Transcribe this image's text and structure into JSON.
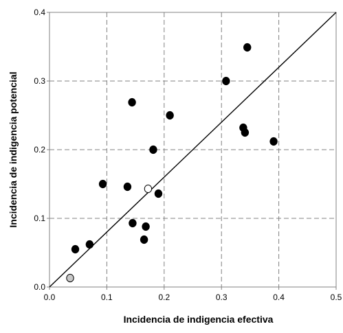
{
  "chart_data": {
    "type": "scatter",
    "xlabel": "Incidencia de indigencia efectiva",
    "ylabel": "Incidencia de indigencia potencial",
    "xlim": [
      0,
      0.5
    ],
    "ylim": [
      0,
      0.4
    ],
    "x_ticks": [
      "0.0",
      "0.1",
      "0.2",
      "0.3",
      "0.4",
      "0.5"
    ],
    "y_ticks": [
      "0.0",
      "0.1",
      "0.2",
      "0.3",
      "0.4"
    ],
    "grid": true,
    "reference_line": {
      "from": [
        0,
        0
      ],
      "to": [
        0.5,
        0.4
      ]
    },
    "colors": {
      "filled": "#000000",
      "hollow": "#ffffff",
      "gray": "#c8c8c8",
      "grid": "#808080"
    },
    "points": [
      {
        "x": 0.045,
        "y": 0.055,
        "style": "filled"
      },
      {
        "x": 0.07,
        "y": 0.062,
        "style": "filled"
      },
      {
        "x": 0.093,
        "y": 0.15,
        "style": "filled"
      },
      {
        "x": 0.136,
        "y": 0.146,
        "style": "filled"
      },
      {
        "x": 0.144,
        "y": 0.269,
        "style": "filled"
      },
      {
        "x": 0.145,
        "y": 0.093,
        "style": "filled"
      },
      {
        "x": 0.165,
        "y": 0.069,
        "style": "filled"
      },
      {
        "x": 0.168,
        "y": 0.088,
        "style": "filled"
      },
      {
        "x": 0.181,
        "y": 0.2,
        "style": "filled"
      },
      {
        "x": 0.19,
        "y": 0.136,
        "style": "filled"
      },
      {
        "x": 0.21,
        "y": 0.25,
        "style": "filled"
      },
      {
        "x": 0.308,
        "y": 0.3,
        "style": "filled"
      },
      {
        "x": 0.338,
        "y": 0.232,
        "style": "filled"
      },
      {
        "x": 0.341,
        "y": 0.225,
        "style": "filled"
      },
      {
        "x": 0.345,
        "y": 0.349,
        "style": "filled"
      },
      {
        "x": 0.391,
        "y": 0.212,
        "style": "filled"
      },
      {
        "x": 0.172,
        "y": 0.143,
        "style": "hollow"
      },
      {
        "x": 0.036,
        "y": 0.013,
        "style": "gray"
      }
    ]
  }
}
